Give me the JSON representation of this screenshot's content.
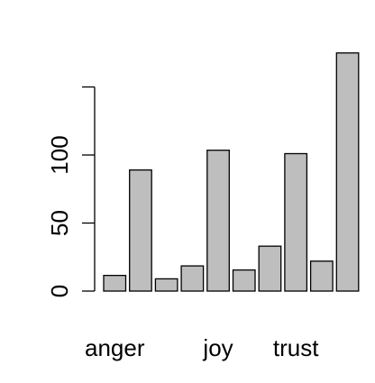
{
  "chart_data": {
    "type": "bar",
    "categories": [
      "anger",
      "",
      "",
      "",
      "joy",
      "",
      "",
      "trust",
      "",
      ""
    ],
    "values": [
      11.5,
      89,
      9,
      18.5,
      103.5,
      15.5,
      33,
      101,
      22,
      175
    ],
    "ylim": [
      0,
      150
    ],
    "yticks": [
      0,
      50,
      100,
      150
    ],
    "ytick_labels": [
      "0",
      "50",
      "100",
      ""
    ],
    "bar_color": "#bebebe",
    "title": "",
    "xlabel": "",
    "ylabel": "",
    "grid": false,
    "legend": "none"
  }
}
